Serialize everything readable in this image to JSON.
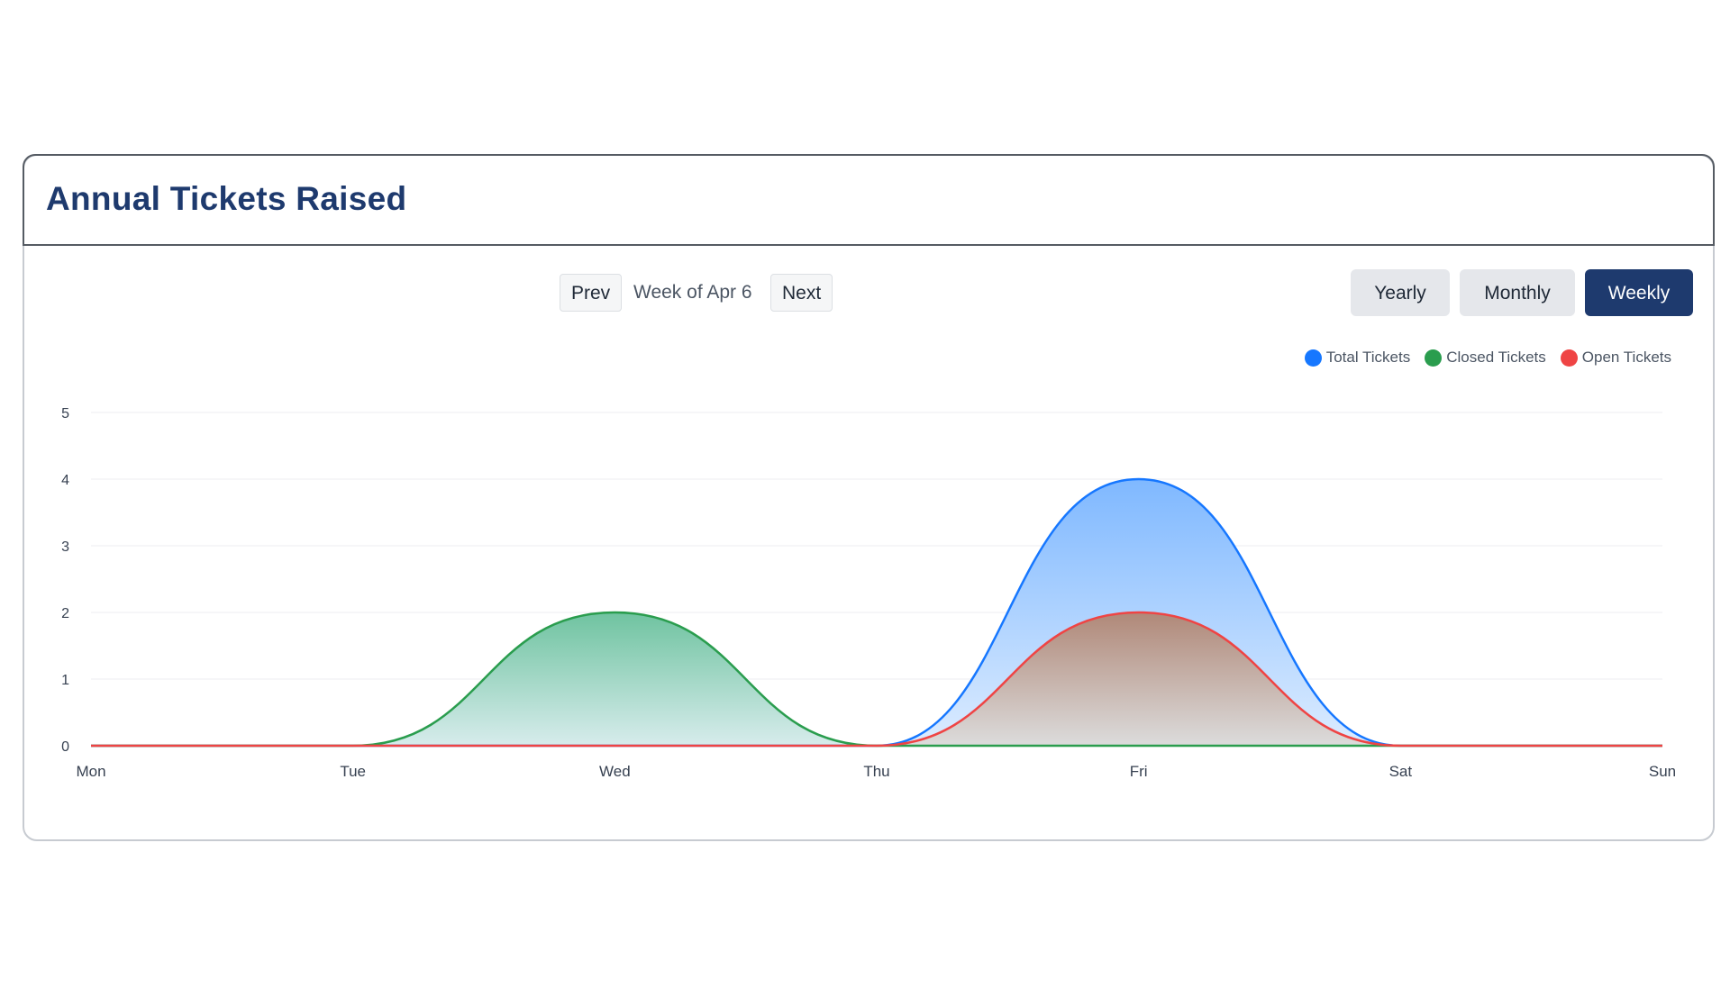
{
  "card": {
    "title": "Annual Tickets Raised"
  },
  "nav": {
    "prev_label": "Prev",
    "week_label": "Week of Apr 6",
    "next_label": "Next"
  },
  "range": {
    "options": [
      "Yearly",
      "Monthly",
      "Weekly"
    ],
    "selected": "Weekly"
  },
  "colors": {
    "total": "#1677ff",
    "closed": "#2a9d4e",
    "open": "#ef4444",
    "title": "#1e3a6e",
    "active_button": "#1e3a6e"
  },
  "chart_data": {
    "type": "area",
    "title": "",
    "xlabel": "",
    "ylabel": "",
    "categories": [
      "Mon",
      "Tue",
      "Wed",
      "Thu",
      "Fri",
      "Sat",
      "Sun"
    ],
    "ylim": [
      0,
      5
    ],
    "yticks": [
      0,
      1,
      2,
      3,
      4,
      5
    ],
    "grid": true,
    "legend_position": "top-right",
    "series": [
      {
        "name": "Total Tickets",
        "color": "#1677ff",
        "values": [
          0,
          0,
          0,
          0,
          4,
          0,
          0
        ]
      },
      {
        "name": "Closed Tickets",
        "color": "#2a9d4e",
        "values": [
          0,
          0,
          2,
          0,
          0,
          0,
          0
        ]
      },
      {
        "name": "Open Tickets",
        "color": "#ef4444",
        "values": [
          0,
          0,
          0,
          0,
          2,
          0,
          0
        ]
      }
    ]
  }
}
